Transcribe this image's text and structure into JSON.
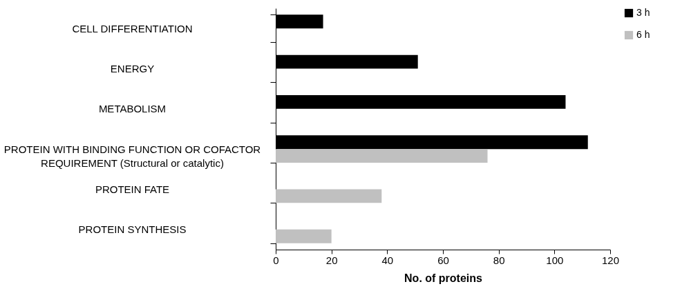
{
  "chart_data": {
    "type": "bar",
    "orientation": "horizontal",
    "xlabel": "No. of proteins",
    "categories": [
      "CELL DIFFERENTIATION",
      "ENERGY",
      "METABOLISM",
      "PROTEIN WITH BINDING FUNCTION OR COFACTOR\nREQUIREMENT (Structural or catalytic)",
      "PROTEIN FATE",
      "PROTEIN SYNTHESIS"
    ],
    "series": [
      {
        "name": "3 h",
        "color": "#000000",
        "values": [
          17,
          51,
          104,
          112,
          null,
          null
        ]
      },
      {
        "name": "6 h",
        "color": "#c0c0c0",
        "values": [
          null,
          null,
          null,
          76,
          38,
          20
        ]
      }
    ],
    "xlim": [
      0,
      120
    ],
    "xticks": [
      0,
      20,
      40,
      60,
      80,
      100,
      120
    ],
    "grid": false,
    "legend": "right"
  }
}
